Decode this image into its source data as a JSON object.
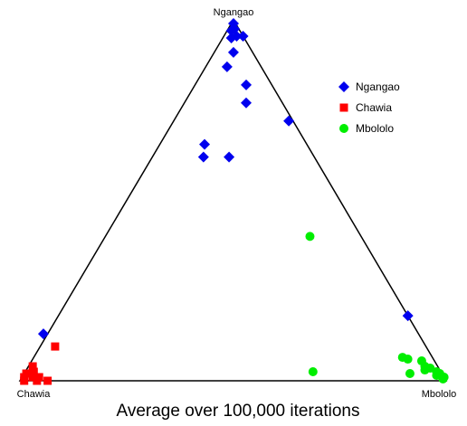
{
  "chart_data": {
    "type": "scatter",
    "subtype": "ternary",
    "title": "Average over 100,000 iterations",
    "vertices": {
      "top": "Ngangao",
      "left": "Chawia",
      "right": "Mbololo"
    },
    "legend": {
      "placement": "top-right",
      "entries": [
        "Ngangao",
        "Chawia",
        "Mbololo"
      ]
    },
    "coordinate_order": [
      "Chawia",
      "Ngangao",
      "Mbololo"
    ],
    "series": [
      {
        "name": "Ngangao",
        "color": "#0000ee",
        "marker": "diamond",
        "points": [
          [
            0.005,
            0.99,
            0.005
          ],
          [
            0.02,
            0.97,
            0.01
          ],
          [
            0.01,
            0.975,
            0.015
          ],
          [
            0.015,
            0.955,
            0.03
          ],
          [
            0.03,
            0.95,
            0.02
          ],
          [
            0.0,
            0.955,
            0.045
          ],
          [
            0.045,
            0.91,
            0.045
          ],
          [
            0.08,
            0.87,
            0.05
          ],
          [
            0.06,
            0.82,
            0.12
          ],
          [
            0.085,
            0.77,
            0.145
          ],
          [
            0.01,
            0.72,
            0.27
          ],
          [
            0.24,
            0.655,
            0.105
          ],
          [
            0.26,
            0.62,
            0.12
          ],
          [
            0.2,
            0.62,
            0.18
          ],
          [
            0.88,
            0.13,
            -0.01
          ],
          [
            0.0,
            0.18,
            0.82
          ]
        ]
      },
      {
        "name": "Chawia",
        "color": "#ff0000",
        "marker": "square",
        "points": [
          [
            0.87,
            0.095,
            0.035
          ],
          [
            0.95,
            0.04,
            0.01
          ],
          [
            0.965,
            0.01,
            0.025
          ],
          [
            0.985,
            0.01,
            0.005
          ],
          [
            0.955,
            0.025,
            0.02
          ],
          [
            0.96,
            0.0,
            0.04
          ],
          [
            0.99,
            0.0,
            0.01
          ],
          [
            0.935,
            0.0,
            0.065
          ],
          [
            0.975,
            0.02,
            0.005
          ],
          [
            0.95,
            0.01,
            0.04
          ]
        ]
      },
      {
        "name": "Mbololo",
        "color": "#00ee00",
        "marker": "circle",
        "points": [
          [
            0.12,
            0.4,
            0.48
          ],
          [
            0.3,
            0.025,
            0.675
          ],
          [
            0.07,
            0.065,
            0.865
          ],
          [
            0.06,
            0.06,
            0.88
          ],
          [
            0.075,
            0.02,
            0.905
          ],
          [
            0.03,
            0.055,
            0.915
          ],
          [
            0.03,
            0.04,
            0.93
          ],
          [
            0.035,
            0.03,
            0.935
          ],
          [
            0.01,
            0.025,
            0.965
          ],
          [
            0.005,
            0.02,
            0.975
          ],
          [
            0.0,
            0.01,
            0.99
          ],
          [
            0.005,
            0.005,
            0.99
          ],
          [
            0.02,
            0.035,
            0.945
          ],
          [
            0.015,
            0.015,
            0.97
          ]
        ]
      }
    ]
  }
}
